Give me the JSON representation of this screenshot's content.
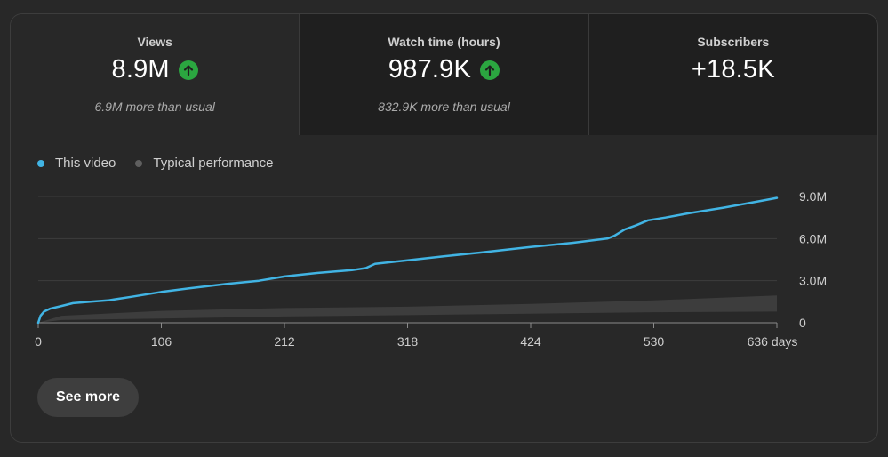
{
  "metrics": [
    {
      "label": "Views",
      "value": "8.9M",
      "sub": "6.9M more than usual",
      "trend": "up"
    },
    {
      "label": "Watch time (hours)",
      "value": "987.9K",
      "sub": "832.9K more than usual",
      "trend": "up"
    },
    {
      "label": "Subscribers",
      "value": "+18.5K",
      "sub": "",
      "trend": ""
    }
  ],
  "legend": [
    {
      "label": "This video",
      "color": "#41b4e4"
    },
    {
      "label": "Typical performance",
      "color": "#5f5f5f"
    }
  ],
  "see_more_label": "See more",
  "chart_data": {
    "type": "line",
    "x_unit": "days",
    "x_ticks": [
      "0",
      "106",
      "212",
      "318",
      "424",
      "530",
      "636 days"
    ],
    "y_ticks": [
      "0",
      "3.0M",
      "6.0M",
      "9.0M"
    ],
    "xlim": [
      0,
      636
    ],
    "ylim": [
      0,
      9000000
    ],
    "grid": true,
    "series": [
      {
        "name": "This video",
        "color": "#41b4e4",
        "x": [
          0,
          2,
          5,
          10,
          20,
          30,
          45,
          60,
          80,
          106,
          130,
          160,
          190,
          212,
          240,
          270,
          282,
          290,
          318,
          350,
          380,
          424,
          460,
          490,
          496,
          505,
          515,
          525,
          540,
          560,
          590,
          620,
          636
        ],
        "y": [
          0,
          500000,
          800000,
          1000000,
          1200000,
          1400000,
          1500000,
          1600000,
          1850000,
          2200000,
          2450000,
          2750000,
          3000000,
          3300000,
          3550000,
          3750000,
          3900000,
          4200000,
          4450000,
          4750000,
          5000000,
          5400000,
          5700000,
          6000000,
          6200000,
          6650000,
          6950000,
          7300000,
          7500000,
          7800000,
          8200000,
          8650000,
          8900000
        ]
      },
      {
        "name": "Typical performance",
        "color": "#3d3d3d",
        "band": true,
        "x": [
          0,
          20,
          106,
          212,
          318,
          424,
          530,
          636
        ],
        "low": [
          0,
          200000,
          300000,
          450000,
          550000,
          650000,
          750000,
          800000
        ],
        "high": [
          0,
          500000,
          850000,
          1050000,
          1150000,
          1350000,
          1600000,
          1950000
        ]
      }
    ]
  }
}
